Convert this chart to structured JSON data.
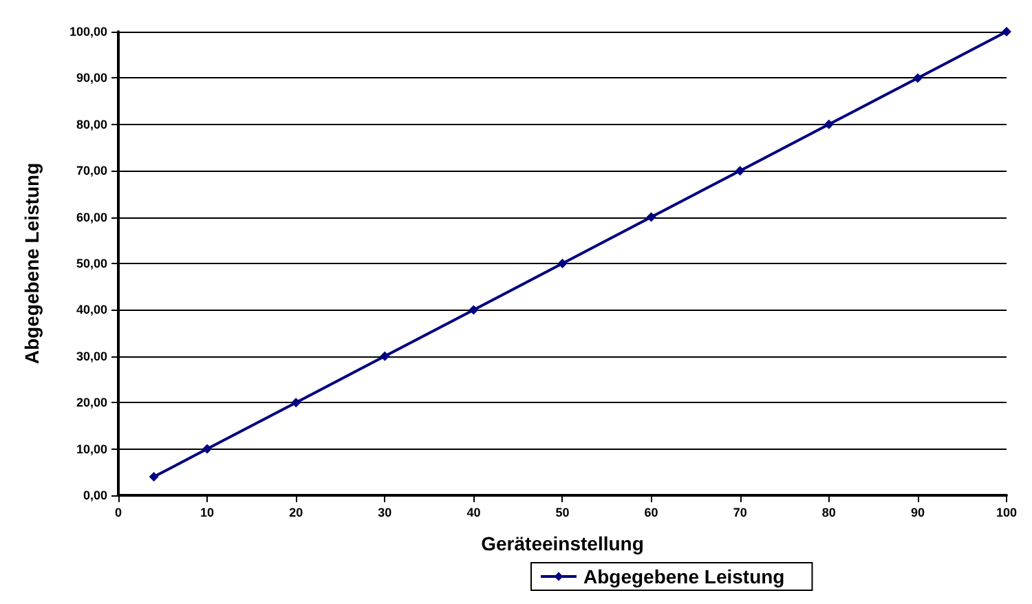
{
  "chart_data": {
    "type": "line",
    "xlabel": "Geräteeinstellung",
    "ylabel": "Abgegebene Leistung",
    "x": [
      4,
      10,
      20,
      30,
      40,
      50,
      60,
      70,
      80,
      90,
      100
    ],
    "series": [
      {
        "name": "Abgegebene Leistung",
        "color": "#000080",
        "values": [
          4,
          10,
          20,
          30,
          40,
          50,
          60,
          70,
          80,
          90,
          100
        ]
      }
    ],
    "xlim": [
      0,
      100
    ],
    "xticks": [
      0,
      10,
      20,
      30,
      40,
      50,
      60,
      70,
      80,
      90,
      100
    ],
    "ylim": [
      0,
      100
    ],
    "yticks": [
      {
        "value": 0,
        "label": "0,00"
      },
      {
        "value": 10,
        "label": "10,00"
      },
      {
        "value": 20,
        "label": "20,00"
      },
      {
        "value": 30,
        "label": "30,00"
      },
      {
        "value": 40,
        "label": "40,00"
      },
      {
        "value": 50,
        "label": "50,00"
      },
      {
        "value": 60,
        "label": "60,00"
      },
      {
        "value": 70,
        "label": "70,00"
      },
      {
        "value": 80,
        "label": "80,00"
      },
      {
        "value": 90,
        "label": "90,00"
      },
      {
        "value": 100,
        "label": "100,00"
      }
    ],
    "grid": "y",
    "legend": "bottom",
    "marker": "diamond",
    "line_style": "solid"
  }
}
